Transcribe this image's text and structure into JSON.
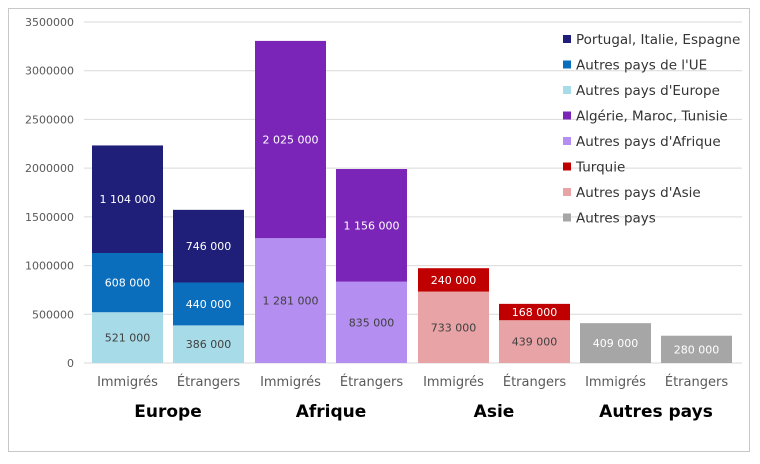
{
  "chart_data": {
    "type": "bar",
    "stacked": true,
    "ylim": [
      0,
      3500000
    ],
    "yticks": [
      0,
      500000,
      1000000,
      1500000,
      2000000,
      2500000,
      3000000,
      3500000
    ],
    "ytick_labels": [
      "0",
      "500000",
      "1000000",
      "1500000",
      "2000000",
      "2500000",
      "3000000",
      "3500000"
    ],
    "grid": true,
    "legend_position": "top-right",
    "legend": [
      {
        "name": "Portugal, Italie, Espagne",
        "color": "#1f1f7a"
      },
      {
        "name": "Autres pays de l'UE",
        "color": "#0a6ebd"
      },
      {
        "name": "Autres pays d'Europe",
        "color": "#a8dbe8"
      },
      {
        "name": "Algérie, Maroc, Tunisie",
        "color": "#7a25b8"
      },
      {
        "name": "Autres pays d'Afrique",
        "color": "#b48ef0"
      },
      {
        "name": "Turquie",
        "color": "#c00000"
      },
      {
        "name": "Autres pays d'Asie",
        "color": "#e8a3a6"
      },
      {
        "name": "Autres pays",
        "color": "#a6a6a6"
      }
    ],
    "groups": [
      {
        "name": "Europe",
        "bars": [
          {
            "category": "Immigrés",
            "segments": [
              {
                "series": "Autres pays d'Europe",
                "value": 521000,
                "label": "521 000",
                "label_color": "#404040"
              },
              {
                "series": "Autres pays de l'UE",
                "value": 608000,
                "label": "608 000",
                "label_color": "#ffffff"
              },
              {
                "series": "Portugal, Italie, Espagne",
                "value": 1104000,
                "label": "1 104 000",
                "label_color": "#ffffff"
              }
            ]
          },
          {
            "category": "Étrangers",
            "segments": [
              {
                "series": "Autres pays d'Europe",
                "value": 386000,
                "label": "386 000",
                "label_color": "#404040"
              },
              {
                "series": "Autres pays de l'UE",
                "value": 440000,
                "label": "440 000",
                "label_color": "#ffffff"
              },
              {
                "series": "Portugal, Italie, Espagne",
                "value": 746000,
                "label": "746 000",
                "label_color": "#ffffff"
              }
            ]
          }
        ]
      },
      {
        "name": "Afrique",
        "bars": [
          {
            "category": "Immigrés",
            "segments": [
              {
                "series": "Autres pays d'Afrique",
                "value": 1281000,
                "label": "1 281 000",
                "label_color": "#404040"
              },
              {
                "series": "Algérie, Maroc, Tunisie",
                "value": 2025000,
                "label": "2 025 000",
                "label_color": "#ffffff"
              }
            ]
          },
          {
            "category": "Étrangers",
            "segments": [
              {
                "series": "Autres pays d'Afrique",
                "value": 835000,
                "label": "835 000",
                "label_color": "#404040"
              },
              {
                "series": "Algérie, Maroc, Tunisie",
                "value": 1156000,
                "label": "1 156 000",
                "label_color": "#ffffff"
              }
            ]
          }
        ]
      },
      {
        "name": "Asie",
        "bars": [
          {
            "category": "Immigrés",
            "segments": [
              {
                "series": "Autres pays d'Asie",
                "value": 733000,
                "label": "733 000",
                "label_color": "#404040"
              },
              {
                "series": "Turquie",
                "value": 240000,
                "label": "240 000",
                "label_color": "#ffffff"
              }
            ]
          },
          {
            "category": "Étrangers",
            "segments": [
              {
                "series": "Autres pays d'Asie",
                "value": 439000,
                "label": "439 000",
                "label_color": "#404040"
              },
              {
                "series": "Turquie",
                "value": 168000,
                "label": "168 000",
                "label_color": "#ffffff"
              }
            ]
          }
        ]
      },
      {
        "name": "Autres pays",
        "bars": [
          {
            "category": "Immigrés",
            "segments": [
              {
                "series": "Autres pays",
                "value": 409000,
                "label": "409 000",
                "label_color": "#ffffff"
              }
            ]
          },
          {
            "category": "Étrangers",
            "segments": [
              {
                "series": "Autres pays",
                "value": 280000,
                "label": "280 000",
                "label_color": "#ffffff"
              }
            ]
          }
        ]
      }
    ]
  }
}
